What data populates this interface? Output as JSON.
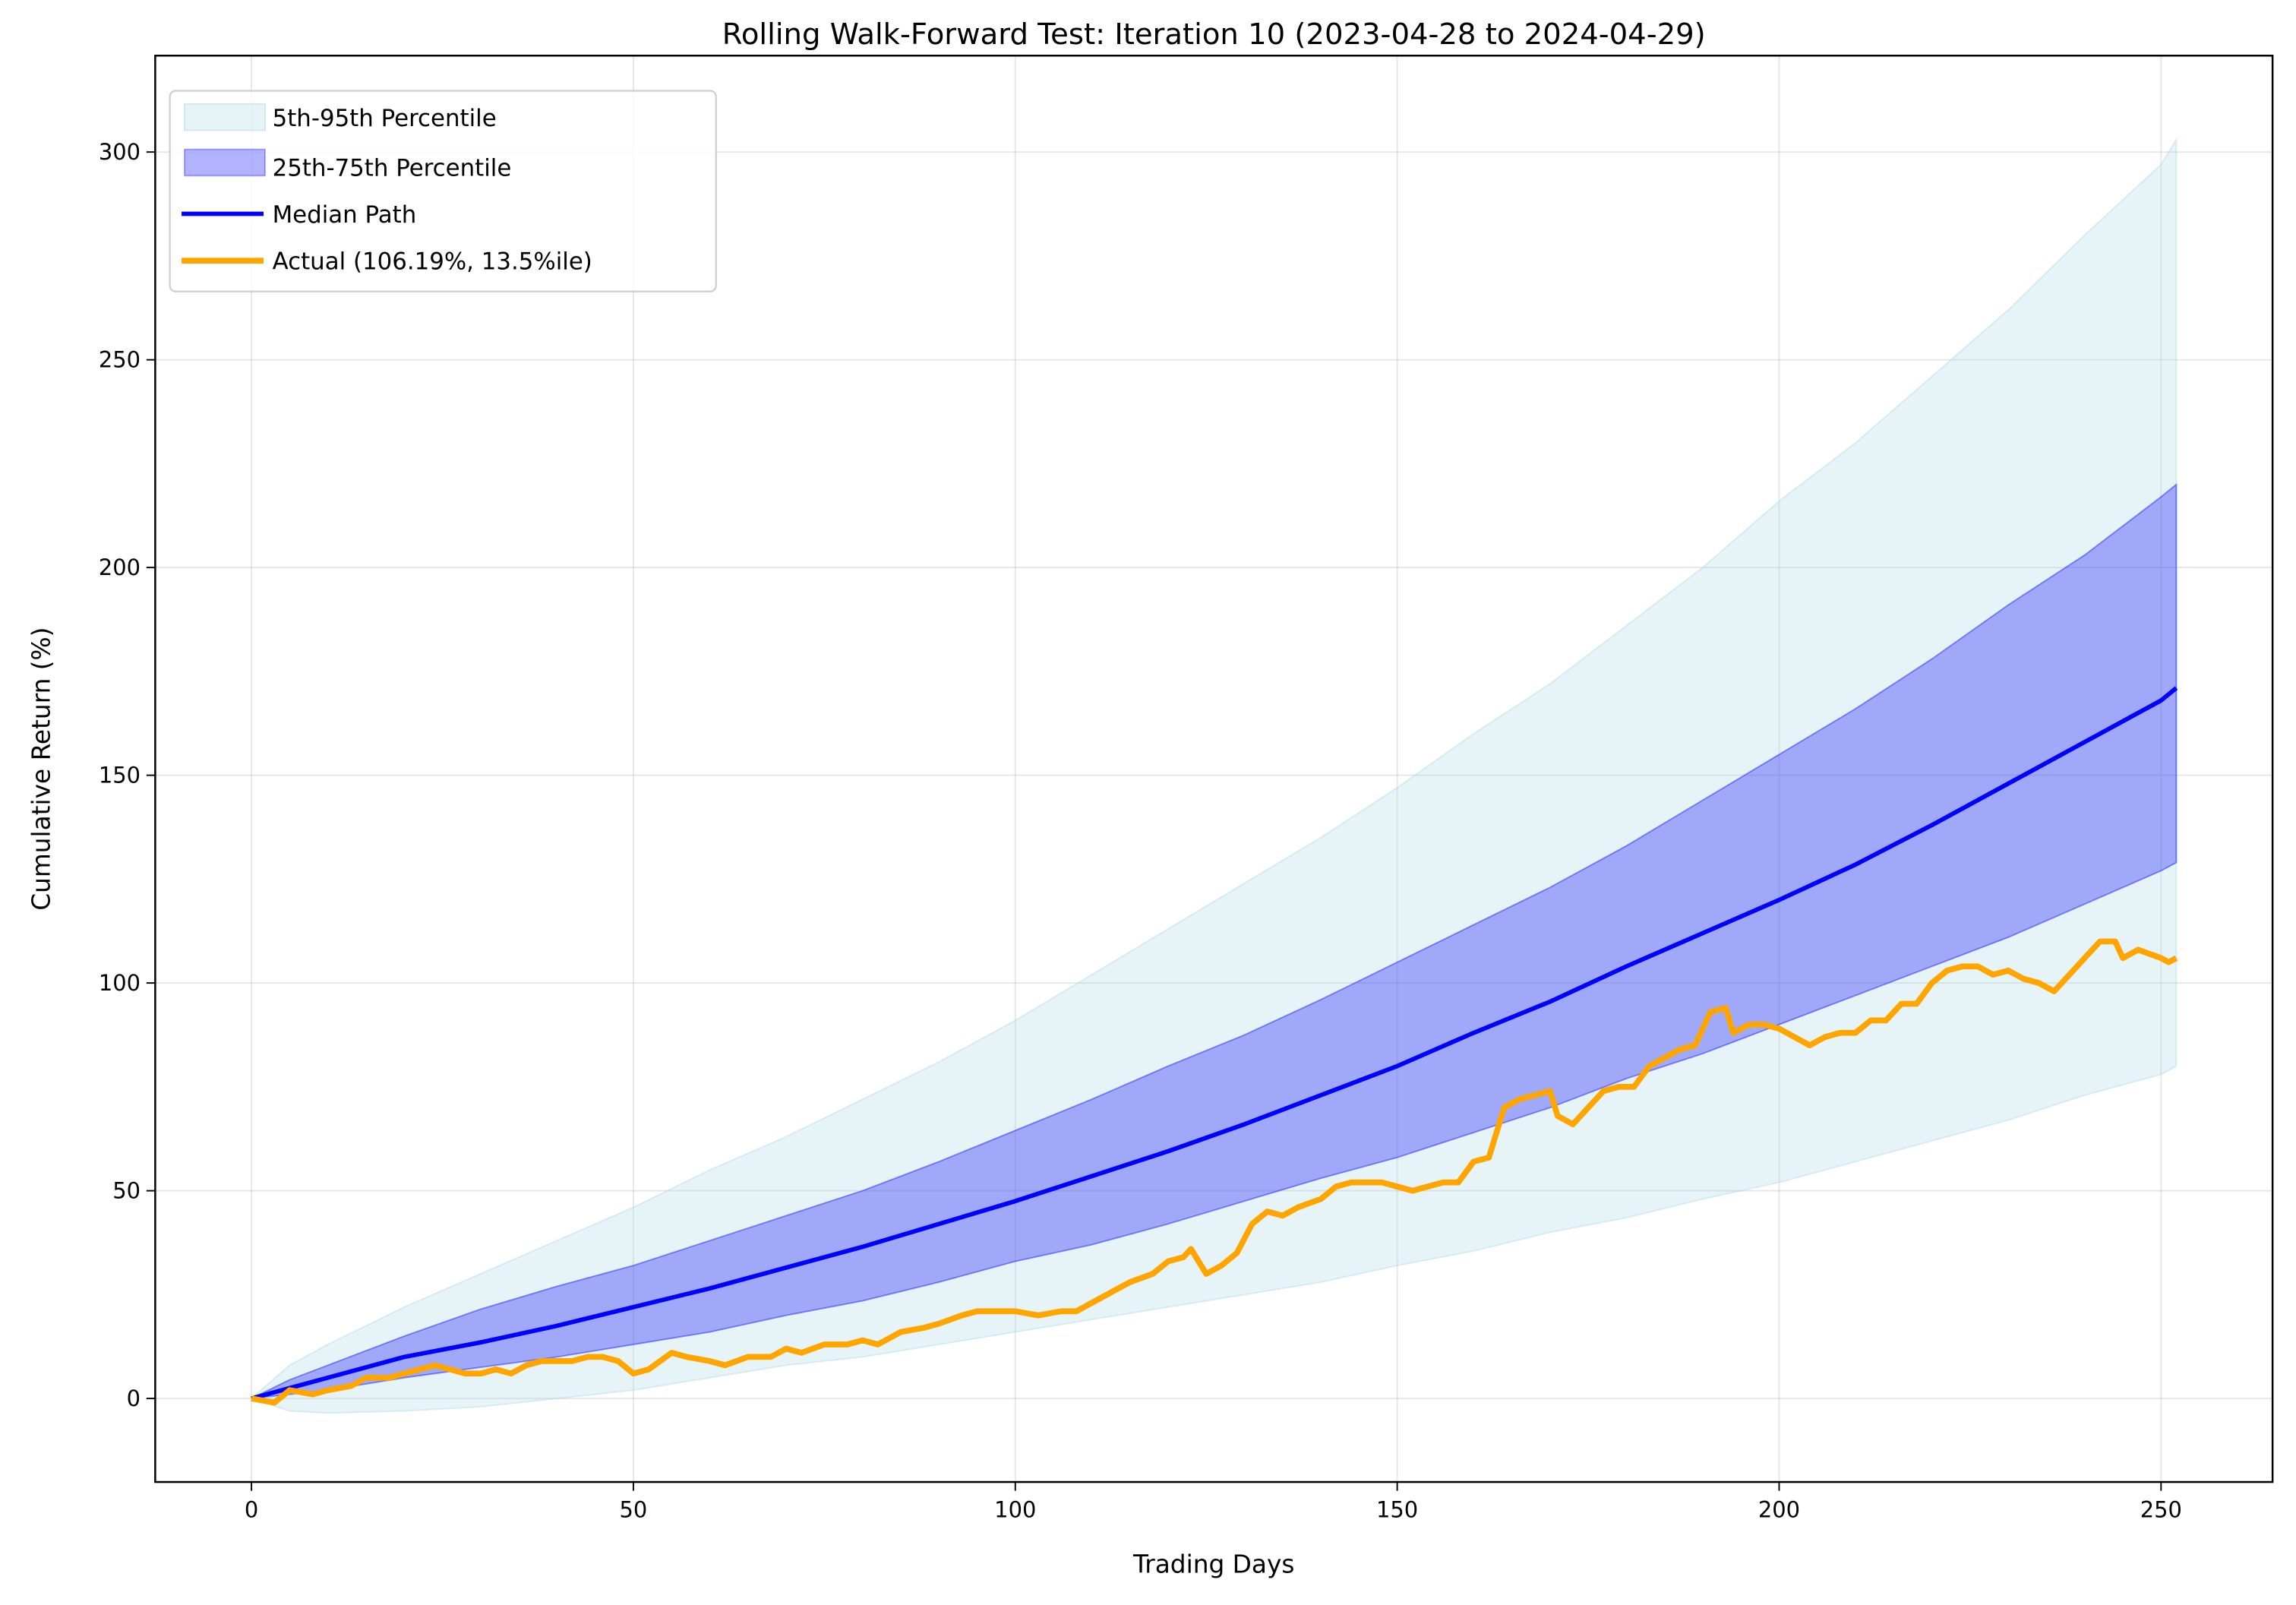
{
  "chart_data": {
    "type": "line",
    "title": "Rolling Walk-Forward Test: Iteration 10 (2023-04-28 to 2024-04-29)",
    "xlabel": "Trading Days",
    "ylabel": "Cumulative Return (%)",
    "xlim": [
      -12.6,
      264.6
    ],
    "ylim": [
      -20.1,
      323.2
    ],
    "xticks": [
      0,
      50,
      100,
      150,
      200,
      250
    ],
    "yticks": [
      0,
      50,
      100,
      150,
      200,
      250,
      300
    ],
    "grid": true,
    "legend_position": "top-left",
    "colors": {
      "band_outer": "#add8e6",
      "band_inner": "#0000ff",
      "median": "#0000ff",
      "actual": "#ffa500"
    },
    "bands": [
      {
        "name": "5th-95th Percentile",
        "x": [
          0,
          5,
          10,
          20,
          30,
          40,
          50,
          60,
          70,
          80,
          90,
          100,
          110,
          120,
          130,
          140,
          150,
          160,
          170,
          180,
          190,
          200,
          210,
          220,
          230,
          240,
          250,
          252
        ],
        "lower": [
          0,
          -3,
          -3.5,
          -3,
          -2,
          0,
          2,
          5,
          8,
          10,
          13,
          16,
          19,
          22,
          25,
          28,
          32,
          35.5,
          40,
          43.5,
          48,
          52,
          57,
          62,
          67,
          73,
          78,
          80
        ],
        "upper": [
          0,
          8,
          13,
          22,
          30,
          38,
          46,
          55,
          63,
          72,
          81,
          91,
          102,
          113,
          124,
          135,
          147,
          160,
          172,
          186,
          200,
          216,
          230,
          246,
          262,
          280,
          297,
          303
        ]
      },
      {
        "name": "25th-75th Percentile",
        "x": [
          0,
          5,
          10,
          20,
          30,
          40,
          50,
          60,
          70,
          80,
          90,
          100,
          110,
          120,
          130,
          140,
          150,
          160,
          170,
          180,
          190,
          200,
          210,
          220,
          230,
          240,
          250,
          252
        ],
        "lower": [
          0,
          1,
          2,
          5,
          7.5,
          10,
          13,
          16,
          20,
          23.5,
          28,
          33,
          37,
          42,
          47.5,
          53,
          58,
          64,
          70,
          77,
          83,
          90,
          97,
          104,
          111,
          119,
          127,
          129
        ],
        "upper": [
          0,
          4.5,
          8,
          15,
          21.5,
          27,
          32,
          38,
          44,
          50,
          57,
          64.5,
          72,
          80,
          87.5,
          96,
          105,
          114,
          123,
          133,
          144,
          155,
          166,
          178,
          191,
          203,
          217,
          220
        ]
      }
    ],
    "series": [
      {
        "name": "Median Path",
        "x": [
          0,
          10,
          20,
          30,
          40,
          50,
          60,
          70,
          80,
          90,
          100,
          110,
          120,
          130,
          140,
          150,
          160,
          170,
          180,
          190,
          200,
          210,
          220,
          230,
          240,
          250,
          252
        ],
        "y": [
          0,
          5,
          10,
          13.5,
          17.5,
          22,
          26.5,
          31.5,
          36.5,
          42,
          47.5,
          53.5,
          59.5,
          66,
          73,
          80,
          88,
          95.5,
          104,
          112,
          120,
          128.5,
          138,
          148,
          158,
          168,
          171
        ]
      },
      {
        "name": "Actual (106.19%, 13.5%ile)",
        "x": [
          0,
          3,
          5,
          8,
          10,
          13,
          15,
          18,
          20,
          22,
          24,
          26,
          28,
          30,
          32,
          34,
          36,
          38,
          40,
          42,
          44,
          46,
          48,
          50,
          52,
          55,
          57,
          60,
          62,
          65,
          68,
          70,
          72,
          75,
          78,
          80,
          82,
          85,
          88,
          90,
          93,
          95,
          97,
          100,
          103,
          106,
          108,
          110,
          113,
          115,
          118,
          120,
          122,
          123,
          125,
          127,
          129,
          131,
          133,
          135,
          137,
          140,
          142,
          144,
          146,
          148,
          150,
          152,
          154,
          156,
          158,
          160,
          162,
          164,
          166,
          168,
          170,
          171,
          173,
          175,
          177,
          179,
          181,
          183,
          185,
          187,
          189,
          191,
          193,
          194,
          196,
          198,
          200,
          202,
          204,
          206,
          208,
          210,
          212,
          214,
          216,
          218,
          220,
          222,
          224,
          226,
          228,
          230,
          232,
          234,
          236,
          238,
          240,
          242,
          244,
          245,
          247,
          250,
          251,
          252
        ],
        "y": [
          0,
          -1,
          2,
          1,
          2,
          3,
          5,
          5,
          6,
          7,
          8,
          7,
          6,
          6,
          7,
          6,
          8,
          9,
          9,
          9,
          10,
          10,
          9,
          6,
          7,
          11,
          10,
          9,
          8,
          10,
          10,
          12,
          11,
          13,
          13,
          14,
          13,
          16,
          17,
          18,
          20,
          21,
          21,
          21,
          20,
          21,
          21,
          23,
          26,
          28,
          30,
          33,
          34,
          36,
          30,
          32,
          35,
          42,
          45,
          44,
          46,
          48,
          51,
          52,
          52,
          52,
          51,
          50,
          51,
          52,
          52,
          57,
          58,
          70,
          72,
          73,
          74,
          68,
          66,
          70,
          74,
          75,
          75,
          80,
          82,
          84,
          85,
          93,
          94,
          88,
          90,
          90,
          89,
          87,
          85,
          87,
          88,
          88,
          91,
          91,
          95,
          95,
          100,
          103,
          104,
          104,
          102,
          103,
          101,
          100,
          98,
          102,
          106,
          110,
          110,
          106,
          108,
          106,
          105,
          106
        ]
      }
    ]
  }
}
